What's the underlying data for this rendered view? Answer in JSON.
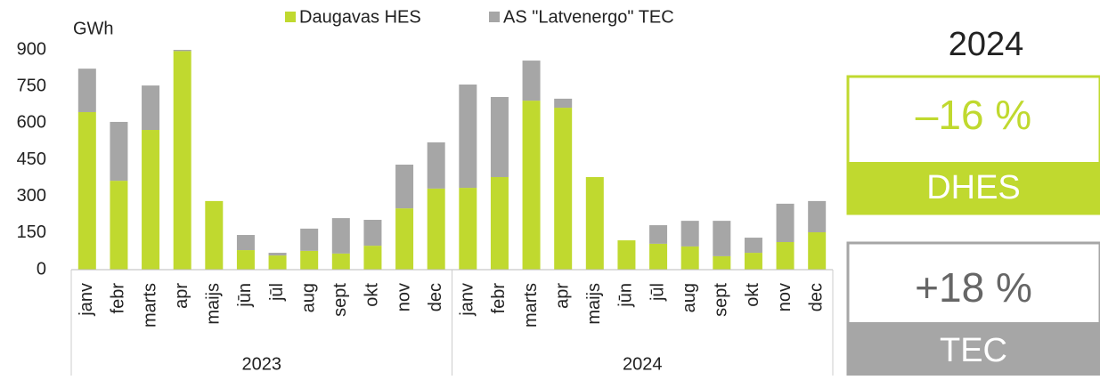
{
  "chart_data": {
    "type": "stacked_bar",
    "y_label": "GWh",
    "categories": [
      "janv",
      "febr",
      "marts",
      "apr",
      "maijs",
      "jūn",
      "jūl",
      "aug",
      "sept",
      "okt",
      "nov",
      "dec",
      "janv",
      "febr",
      "marts",
      "apr",
      "maijs",
      "jūn",
      "jūl",
      "aug",
      "sept",
      "okt",
      "nov",
      "dec"
    ],
    "groups": [
      "2023",
      "2024"
    ],
    "series": [
      {
        "name": "Daugavas HES",
        "color": "#c0d92f",
        "values": [
          645,
          364,
          572,
          895,
          281,
          80,
          58,
          77,
          66,
          98,
          251,
          332,
          335,
          379,
          692,
          663,
          379,
          120,
          106,
          95,
          55,
          69,
          113,
          153
        ]
      },
      {
        "name": "AS \"Latvenergo\" TEC",
        "color": "#a6a6a6",
        "values": [
          178,
          241,
          182,
          5,
          0,
          62,
          11,
          91,
          145,
          106,
          179,
          189,
          423,
          328,
          164,
          37,
          0,
          0,
          76,
          105,
          145,
          62,
          157,
          128
        ]
      }
    ],
    "ylim": [
      0,
      900
    ],
    "yticks": [
      0,
      150,
      300,
      450,
      600,
      750,
      900
    ],
    "grid": false
  },
  "panel": {
    "year": "2024",
    "dhes_change": "–16 %",
    "dhes_label": "DHES",
    "tec_change": "+18 %",
    "tec_label": "TEC"
  }
}
